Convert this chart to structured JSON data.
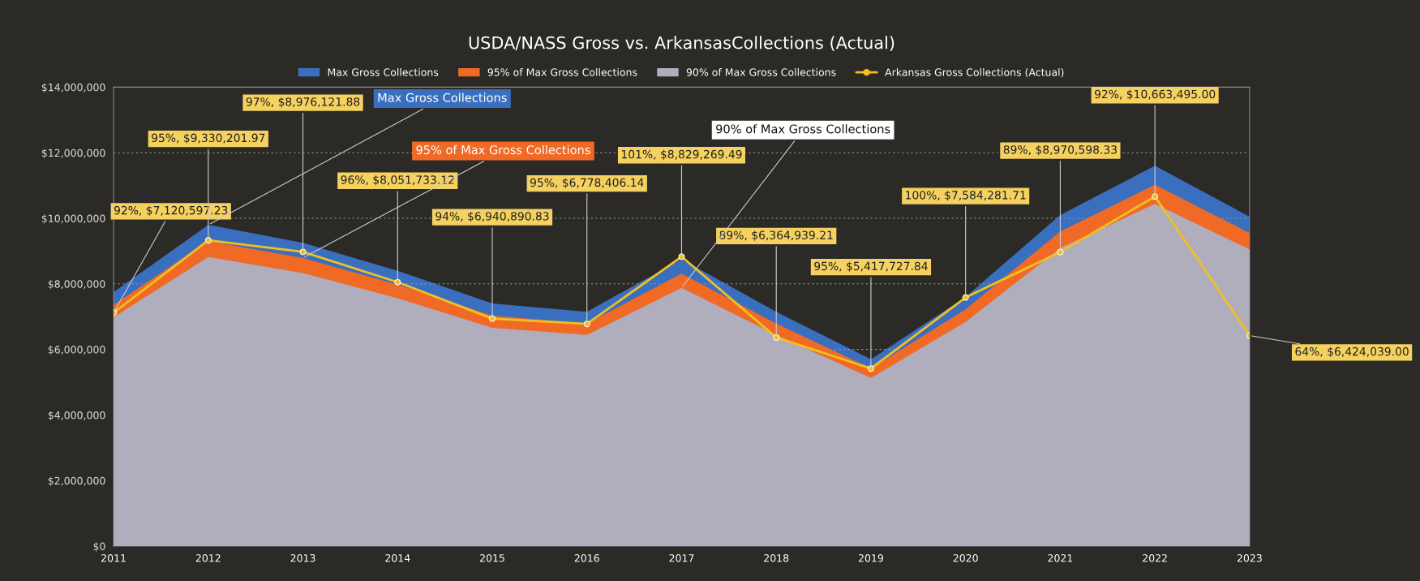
{
  "chart_data": {
    "type": "area",
    "title": "USDA/NASS Gross vs. ArkansasCollections (Actual)",
    "categories": [
      "2011",
      "2012",
      "2013",
      "2014",
      "2015",
      "2016",
      "2017",
      "2018",
      "2019",
      "2020",
      "2021",
      "2022",
      "2023"
    ],
    "series": [
      {
        "name": "Max Gross Collections",
        "color": "#3a6fc0",
        "values": [
          7750000,
          9800000,
          9250000,
          8400000,
          7400000,
          7150000,
          8750000,
          7150000,
          5700000,
          7600000,
          10100000,
          11600000,
          10050000
        ]
      },
      {
        "name": "95% of Max Gross Collections",
        "color": "#f06a25",
        "values": [
          7360000,
          9310000,
          8790000,
          7980000,
          7030000,
          6790000,
          8310000,
          6790000,
          5420000,
          7220000,
          9600000,
          11020000,
          9550000
        ]
      },
      {
        "name": "90% of Max Gross Collections",
        "color": "#b0adbd",
        "values": [
          6980000,
          8820000,
          8330000,
          7560000,
          6660000,
          6440000,
          7880000,
          6440000,
          5130000,
          6840000,
          9090000,
          10440000,
          9050000
        ]
      },
      {
        "name": "Arkansas Gross Collections (Actual)",
        "type": "line",
        "color": "#f0c020",
        "marker": "circle",
        "values": [
          7120597.23,
          9330201.97,
          8976121.88,
          8051733.12,
          6940890.83,
          6778406.14,
          8829269.49,
          6364939.21,
          5417727.84,
          7584281.71,
          8970598.33,
          10663495.0,
          6424039.0
        ],
        "value_labels": [
          "92%, $7,120,597.23",
          "95%, $9,330,201.97",
          "97%, $8,976,121.88",
          "96%, $8,051,733.12",
          "94%, $6,940,890.83",
          "95%, $6,778,406.14",
          "101%, $8,829,269.49",
          "89%, $6,364,939.21",
          "95%, $5,417,727.84",
          "100%, $7,584,281.71",
          "89%, $8,970,598.33",
          "92%, $10,663,495.00",
          "64%, $6,424,039.00"
        ]
      }
    ],
    "ylim": [
      0,
      14000000
    ],
    "yticks": [
      {
        "value": 0,
        "label": "$0"
      },
      {
        "value": 2000000,
        "label": "$2,000,000"
      },
      {
        "value": 4000000,
        "label": "$4,000,000"
      },
      {
        "value": 6000000,
        "label": "$6,000,000"
      },
      {
        "value": 8000000,
        "label": "$8,000,000"
      },
      {
        "value": 10000000,
        "label": "$10,000,000"
      },
      {
        "value": 12000000,
        "label": "$12,000,000"
      },
      {
        "value": 14000000,
        "label": "$14,000,000"
      }
    ],
    "grid": "y",
    "legend": "top",
    "annotations": [
      {
        "text": "Max Gross Collections",
        "x": "2012",
        "y": 9800000
      },
      {
        "text": "95% of Max Gross Collections",
        "x": "2013",
        "y": 8790000
      },
      {
        "text": "90% of Max Gross Collections",
        "x": "2017",
        "y": 7880000
      }
    ]
  }
}
